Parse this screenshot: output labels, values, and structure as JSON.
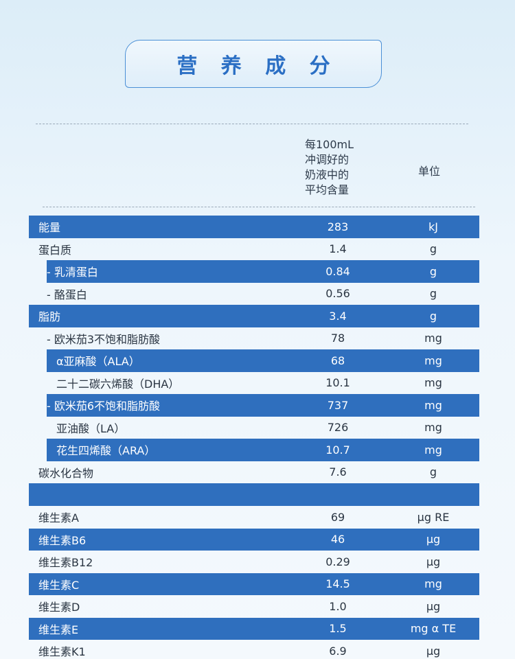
{
  "title": "营 养 成 分",
  "header": {
    "amount_lines": [
      "每100mL",
      "冲调好的",
      "奶液中的",
      "平均含量"
    ],
    "unit": "单位"
  },
  "rows": [
    {
      "name": "能量",
      "amount": "283",
      "unit": "kJ",
      "style": "blue",
      "indent": 0
    },
    {
      "name": "蛋白质",
      "amount": "1.4",
      "unit": "g",
      "style": "light",
      "indent": 0
    },
    {
      "name": "- 乳清蛋白",
      "amount": "0.84",
      "unit": "g",
      "style": "blue",
      "indent": 1
    },
    {
      "name": "- 酪蛋白",
      "amount": "0.56",
      "unit": "g",
      "style": "light",
      "indent": 1
    },
    {
      "name": "脂肪",
      "amount": "3.4",
      "unit": "g",
      "style": "blue",
      "indent": 0
    },
    {
      "name": "- 欧米茄3不饱和脂肪酸",
      "amount": "78",
      "unit": "mg",
      "style": "light",
      "indent": 1
    },
    {
      "name": "α亚麻酸（ALA）",
      "amount": "68",
      "unit": "mg",
      "style": "blue",
      "indent": 2
    },
    {
      "name": "二十二碳六烯酸（DHA）",
      "amount": "10.1",
      "unit": "mg",
      "style": "light",
      "indent": 2
    },
    {
      "name": "- 欧米茄6不饱和脂肪酸",
      "amount": "737",
      "unit": "mg",
      "style": "blue",
      "indent": 1
    },
    {
      "name": "亚油酸（LA）",
      "amount": "726",
      "unit": "mg",
      "style": "light",
      "indent": 2
    },
    {
      "name": "花生四烯酸（ARA）",
      "amount": "10.7",
      "unit": "mg",
      "style": "blue",
      "indent": 2
    },
    {
      "name": "碳水化合物",
      "amount": "7.6",
      "unit": "g",
      "style": "light",
      "indent": 0
    },
    {
      "name": "",
      "amount": "",
      "unit": "",
      "style": "spacer",
      "indent": 0
    },
    {
      "name": "维生素A",
      "amount": "69",
      "unit": "μg RE",
      "style": "light",
      "indent": 0
    },
    {
      "name": "维生素B6",
      "amount": "46",
      "unit": "μg",
      "style": "blue",
      "indent": 0
    },
    {
      "name": "维生素B12",
      "amount": "0.29",
      "unit": "μg",
      "style": "light",
      "indent": 0
    },
    {
      "name": "维生素C",
      "amount": "14.5",
      "unit": "mg",
      "style": "blue",
      "indent": 0
    },
    {
      "name": "维生素D",
      "amount": "1.0",
      "unit": "μg",
      "style": "light",
      "indent": 0
    },
    {
      "name": "维生素E",
      "amount": "1.5",
      "unit": "mg α TE",
      "style": "blue",
      "indent": 0
    },
    {
      "name": "维生素K1",
      "amount": "6.9",
      "unit": "μg",
      "style": "light",
      "indent": 0
    }
  ]
}
